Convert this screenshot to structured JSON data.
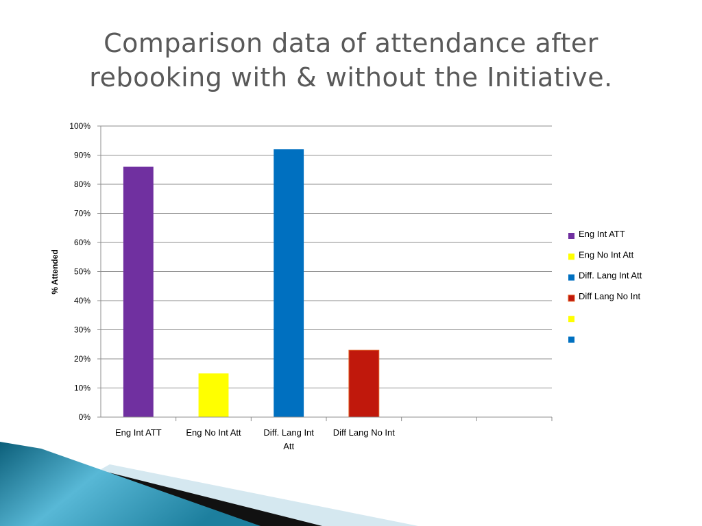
{
  "slide": {
    "title_line1": "Comparison data of attendance after",
    "title_line2": "rebooking with & without the Initiative."
  },
  "chart_data": {
    "type": "bar",
    "ylabel": "% Attended",
    "ylim": [
      0,
      100
    ],
    "yticks": [
      "0%",
      "10%",
      "20%",
      "30%",
      "40%",
      "50%",
      "60%",
      "70%",
      "80%",
      "90%",
      "100%"
    ],
    "grid": true,
    "legend_position": "right",
    "category_slots": 6,
    "categories": [
      "Eng Int ATT",
      "Eng No Int Att",
      "Diff. Lang Int Att",
      "Diff Lang No Int"
    ],
    "category_labels": [
      [
        "Eng Int ATT"
      ],
      [
        "Eng No Int Att"
      ],
      [
        "Diff. Lang Int",
        "Att"
      ],
      [
        "Diff Lang No Int"
      ]
    ],
    "values": [
      86,
      15,
      92,
      23
    ],
    "colors": [
      "#7030A0",
      "#FFFF00",
      "#0070C0",
      "#C0180C"
    ],
    "legend": [
      {
        "label": "Eng Int ATT",
        "color": "#7030A0"
      },
      {
        "label": "Eng No Int Att",
        "color": "#FFFF00"
      },
      {
        "label": "Diff. Lang Int Att",
        "color": "#0070C0"
      },
      {
        "label": "Diff Lang No Int",
        "color": "#C0180C"
      },
      {
        "label": "",
        "color": "#FFFF00"
      },
      {
        "label": "",
        "color": "#0070C0"
      }
    ]
  }
}
